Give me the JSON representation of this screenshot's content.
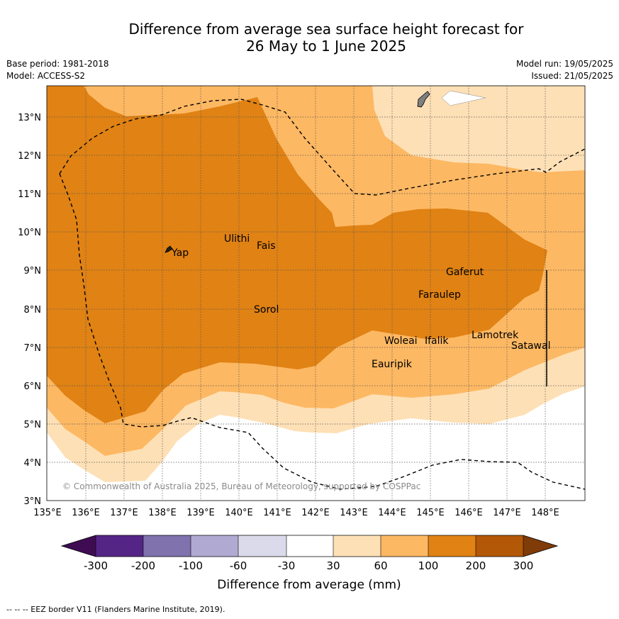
{
  "header": {
    "title_line1": "Difference from average sea surface height forecast for",
    "title_line2": "26 May to 1 June 2025",
    "base_period": "Base period: 1981-2018",
    "model": "Model: ACCESS-S2",
    "model_run": "Model run: 19/05/2025",
    "issued": "Issued: 21/05/2025"
  },
  "map": {
    "lon_ticks": [
      "135°E",
      "136°E",
      "137°E",
      "138°E",
      "139°E",
      "140°E",
      "141°E",
      "142°E",
      "143°E",
      "144°E",
      "145°E",
      "146°E",
      "147°E",
      "148°E"
    ],
    "lat_ticks": [
      "13°N",
      "12°N",
      "11°N",
      "10°N",
      "9°N",
      "8°N",
      "7°N",
      "6°N",
      "5°N",
      "4°N",
      "3°N"
    ],
    "places": [
      {
        "name": "Yap",
        "lon": 138.0,
        "lat": 9.5
      },
      {
        "name": "Ulithi",
        "lon": 139.6,
        "lat": 9.95
      },
      {
        "name": "Fais",
        "lon": 140.4,
        "lat": 9.75
      },
      {
        "name": "Sorol",
        "lon": 140.4,
        "lat": 8.1
      },
      {
        "name": "Gaferut",
        "lon": 145.4,
        "lat": 9.15
      },
      {
        "name": "Faraulep",
        "lon": 144.7,
        "lat": 8.45
      },
      {
        "name": "Lamotrek",
        "lon": 146.0,
        "lat": 7.45
      },
      {
        "name": "Satawal",
        "lon": 147.1,
        "lat": 7.15
      },
      {
        "name": "Woleai",
        "lon": 143.7,
        "lat": 7.35
      },
      {
        "name": "Ifalik",
        "lon": 144.8,
        "lat": 7.3
      },
      {
        "name": "Eauripik",
        "lon": 143.4,
        "lat": 6.7
      }
    ],
    "copyright": "© Commonwealth of Australia 2025, Bureau of Meteorology, supported by COSPPac"
  },
  "colorbar": {
    "ticks": [
      "-300",
      "-200",
      "-100",
      "-60",
      "-30",
      "30",
      "60",
      "100",
      "200",
      "300"
    ],
    "colors": [
      "#3f0c54",
      "#542585",
      "#7f72ad",
      "#b0aad3",
      "#dadaeb",
      "#ffffff",
      "#fee0b6",
      "#fdb863",
      "#e08214",
      "#b35806",
      "#7f3b08"
    ],
    "label": "Difference from average (mm)"
  },
  "footnote": "--  --  -- EEZ border V11 (Flanders Marine Institute, 2019)."
}
